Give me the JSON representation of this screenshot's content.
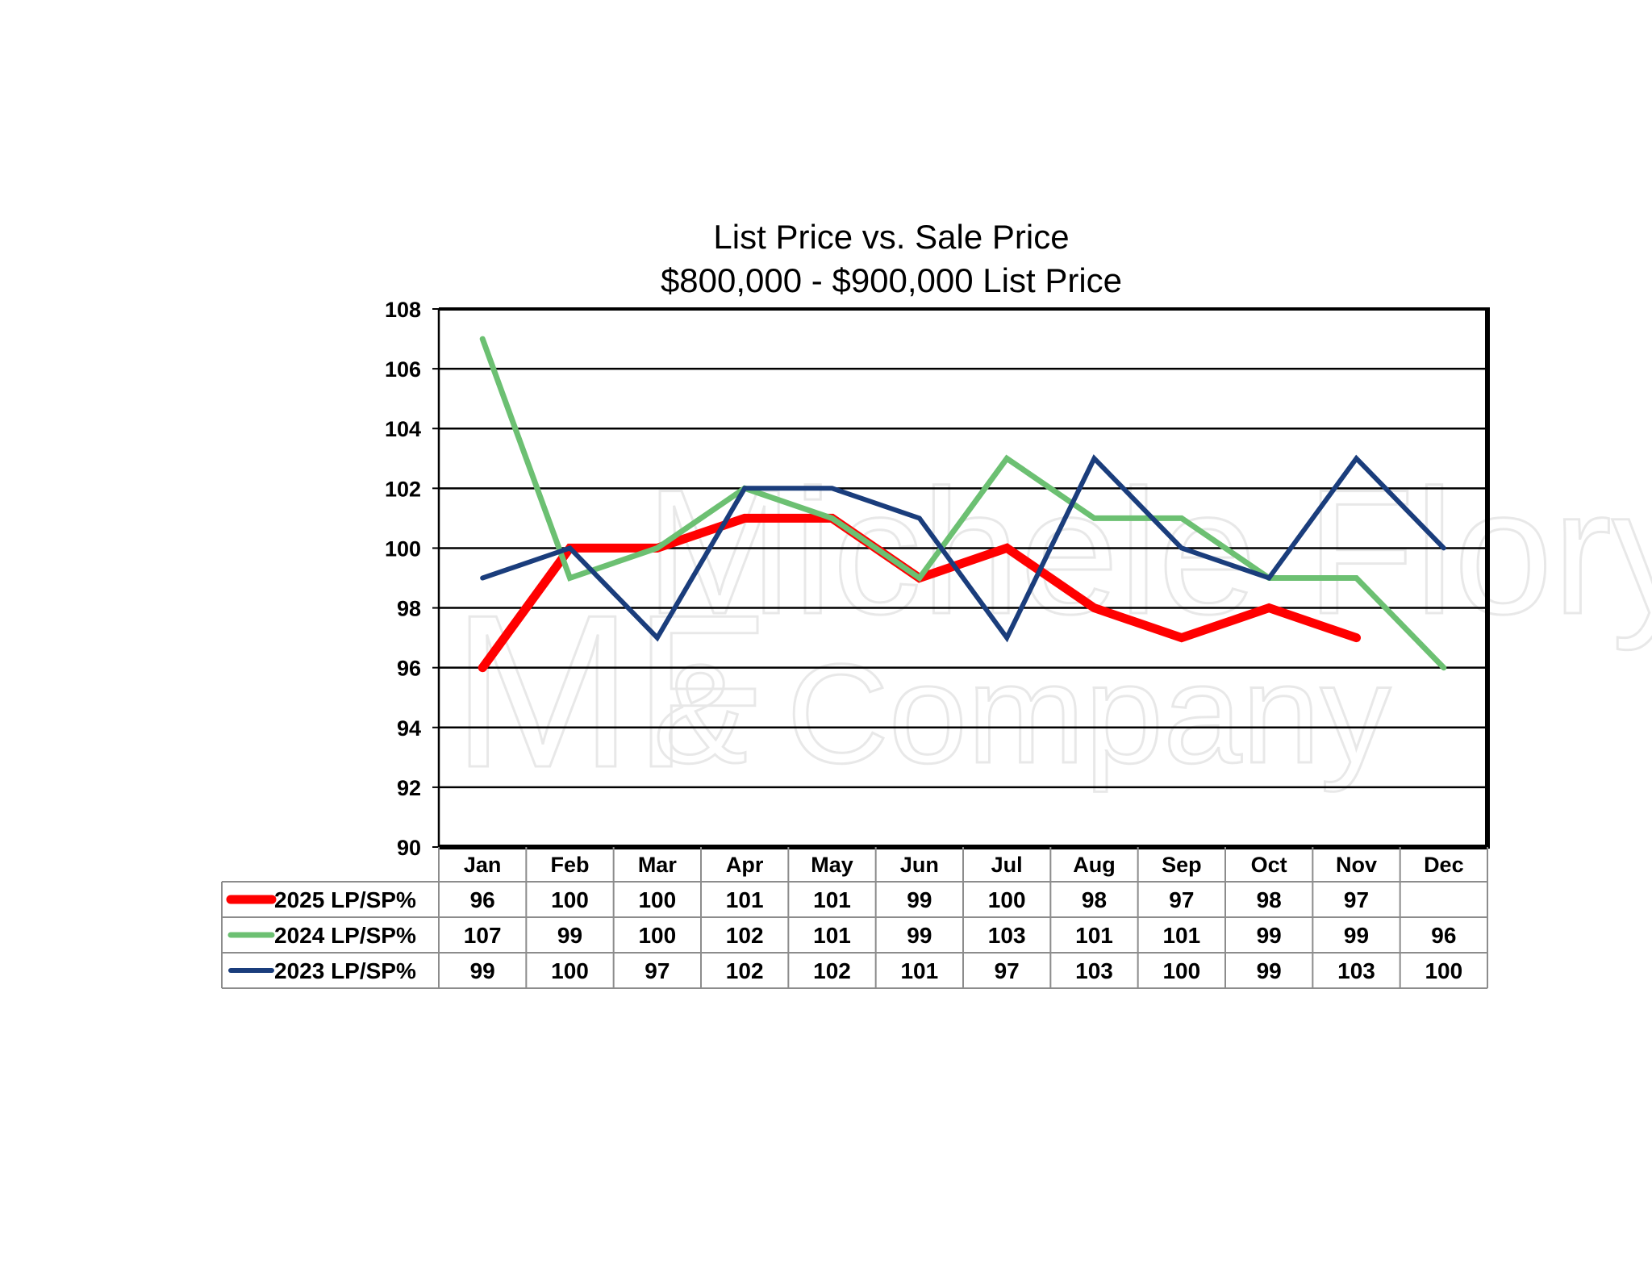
{
  "chart_data": {
    "type": "line",
    "title": "List Price vs. Sale Price",
    "subtitle": "$800,000 - $900,000 List Price",
    "xlabel": "",
    "ylabel": "",
    "ylim": [
      90,
      108
    ],
    "yticks": [
      90,
      92,
      94,
      96,
      98,
      100,
      102,
      104,
      106,
      108
    ],
    "ytick_labels": [
      "90",
      "92",
      "94",
      "96",
      "98",
      "100",
      "102",
      "104",
      "106",
      "108"
    ],
    "grid": true,
    "legend": "data-table-left",
    "categories": [
      "Jan",
      "Feb",
      "Mar",
      "Apr",
      "May",
      "Jun",
      "Jul",
      "Aug",
      "Sep",
      "Oct",
      "Nov",
      "Dec"
    ],
    "series": [
      {
        "name": "2025 LP/SP%",
        "color": "#ff0000",
        "values": [
          96,
          100,
          100,
          101,
          101,
          99,
          100,
          98,
          97,
          98,
          97,
          null
        ],
        "labels": [
          "96",
          "100",
          "100",
          "101",
          "101",
          "99",
          "100",
          "98",
          "97",
          "98",
          "97",
          ""
        ]
      },
      {
        "name": "2024 LP/SP%",
        "color": "#6cc072",
        "values": [
          107,
          99,
          100,
          102,
          101,
          99,
          103,
          101,
          101,
          99,
          99,
          96
        ],
        "labels": [
          "107",
          "99",
          "100",
          "102",
          "101",
          "99",
          "103",
          "101",
          "101",
          "99",
          "99",
          "96"
        ]
      },
      {
        "name": "2023 LP/SP%",
        "color": "#1a3d7c",
        "values": [
          99,
          100,
          97,
          102,
          102,
          101,
          97,
          103,
          100,
          99,
          103,
          100
        ],
        "labels": [
          "99",
          "100",
          "97",
          "102",
          "102",
          "101",
          "97",
          "103",
          "100",
          "99",
          "103",
          "100"
        ]
      }
    ]
  },
  "watermark": {
    "line1": "Michele Flory",
    "line2": "& Company",
    "initials": "MF"
  }
}
